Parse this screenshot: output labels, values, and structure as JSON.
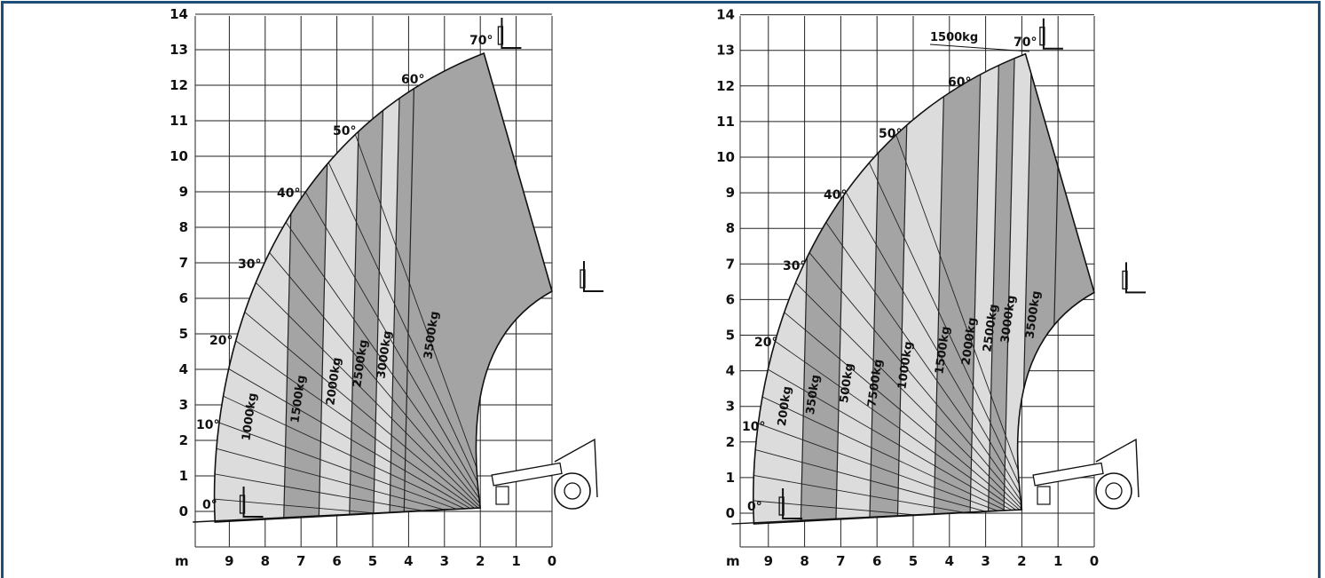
{
  "colors": {
    "frame": "#1f4e79",
    "dark_band": "#a4a4a4",
    "light_band": "#dcdcdc",
    "grid": "#222222"
  },
  "chart_data": [
    {
      "type": "load-chart",
      "ylim": [
        0,
        14
      ],
      "xlim": [
        9,
        0
      ],
      "y_ticks": [
        "0",
        "1",
        "2",
        "3",
        "4",
        "5",
        "6",
        "7",
        "8",
        "9",
        "10",
        "11",
        "12",
        "13",
        "14"
      ],
      "x_ticks": [
        "9",
        "8",
        "7",
        "6",
        "5",
        "4",
        "3",
        "2",
        "1",
        "0"
      ],
      "x_unit": "m",
      "angles": [
        "0°",
        "10°",
        "20°",
        "30°",
        "40°",
        "50°",
        "60°",
        "70°"
      ],
      "load_zones": [
        {
          "label": "1000kg",
          "shade": "light"
        },
        {
          "label": "1500kg",
          "shade": "dark"
        },
        {
          "label": "2000kg",
          "shade": "light"
        },
        {
          "label": "2500kg",
          "shade": "dark"
        },
        {
          "label": "3000kg",
          "shade": "light"
        },
        {
          "label": "3500kg",
          "shade": "dark"
        }
      ]
    },
    {
      "type": "load-chart",
      "ylim": [
        0,
        14
      ],
      "xlim": [
        9,
        0
      ],
      "y_ticks": [
        "0",
        "1",
        "2",
        "3",
        "4",
        "5",
        "6",
        "7",
        "8",
        "9",
        "10",
        "11",
        "12",
        "13",
        "14"
      ],
      "x_ticks": [
        "9",
        "8",
        "7",
        "6",
        "5",
        "4",
        "3",
        "2",
        "1",
        "0"
      ],
      "x_unit": "m",
      "angles": [
        "0°",
        "10°",
        "20°",
        "30°",
        "40°",
        "50°",
        "60°",
        "70°"
      ],
      "top_label": "1500kg",
      "load_zones": [
        {
          "label": "200kg",
          "shade": "light"
        },
        {
          "label": "350kg",
          "shade": "dark"
        },
        {
          "label": "500kg",
          "shade": "light"
        },
        {
          "label": "7500kg",
          "shade": "dark"
        },
        {
          "label": "1000kg",
          "shade": "light"
        },
        {
          "label": "1500kg",
          "shade": "dark"
        },
        {
          "label": "2000kg",
          "shade": "light"
        },
        {
          "label": "2500kg",
          "shade": "dark"
        },
        {
          "label": "3000kg",
          "shade": "light"
        },
        {
          "label": "3500kg",
          "shade": "dark"
        }
      ]
    }
  ]
}
